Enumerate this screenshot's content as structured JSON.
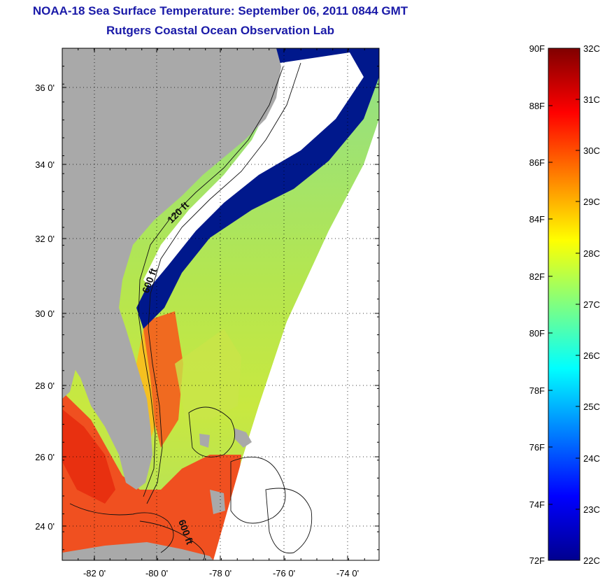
{
  "title": {
    "line1": "NOAA-18 Sea Surface Temperature:  September 06, 2011 0844 GMT",
    "line2": "Rutgers Coastal Ocean Observation Lab"
  },
  "map": {
    "lat_ticks": [
      "24 0'",
      "26 0'",
      "28 0'",
      "30 0'",
      "32 0'",
      "34 0'",
      "36 0'"
    ],
    "lon_ticks": [
      "-82 0'",
      "-80 0'",
      "-78 0'",
      "-76 0'",
      "-74 0'"
    ],
    "isobath_labels": [
      "120 ft",
      "600 ft",
      "600 ft"
    ]
  },
  "colorbar": {
    "fahrenheit_labels": [
      "90F",
      "88F",
      "86F",
      "84F",
      "82F",
      "80F",
      "78F",
      "76F",
      "74F",
      "72F"
    ],
    "celsius_labels": [
      "32C",
      "31C",
      "30C",
      "29C",
      "28C",
      "27C",
      "26C",
      "25C",
      "24C",
      "23C",
      "22C"
    ],
    "colors": [
      "#00008f",
      "#0000ff",
      "#0080ff",
      "#00ffff",
      "#80ff80",
      "#ffff00",
      "#ff8000",
      "#ff0000",
      "#800000"
    ]
  },
  "colors": {
    "title": "#1a1aa8",
    "land": "#a9a9a9",
    "cloud": "#ffffff",
    "cold": "#00188c"
  }
}
